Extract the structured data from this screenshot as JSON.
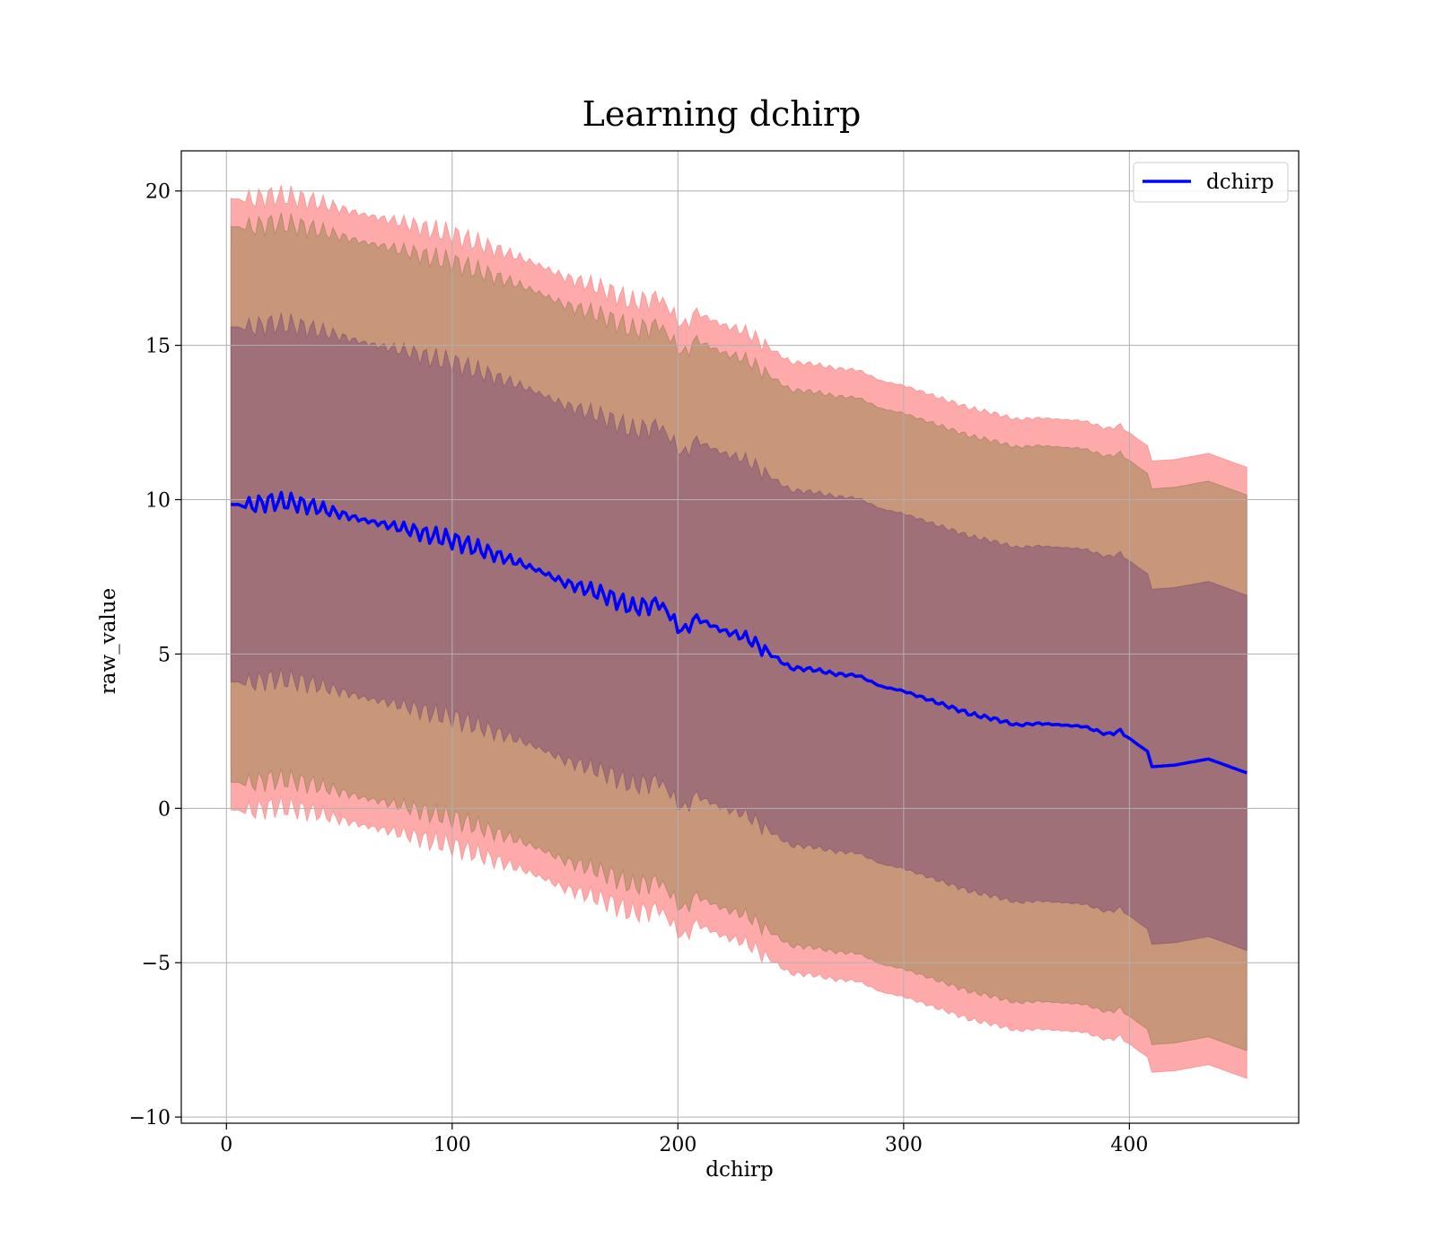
{
  "chart_data": {
    "type": "area",
    "title": "Learning dchirp",
    "xlabel": "dchirp",
    "ylabel": "raw_value",
    "xlim": [
      -20,
      475
    ],
    "ylim": [
      -10.2,
      21.3
    ],
    "xticks": [
      0,
      100,
      200,
      300,
      400
    ],
    "yticks": [
      -10,
      -5,
      0,
      5,
      10,
      15,
      20
    ],
    "xtick_labels": [
      "0",
      "100",
      "200",
      "300",
      "400"
    ],
    "ytick_labels": [
      "−10",
      "−5",
      "0",
      "5",
      "10",
      "15",
      "20"
    ],
    "grid": true,
    "legend": {
      "placement": "top-right",
      "entries": [
        "dchirp"
      ]
    },
    "colors": {
      "line": "#0000ff",
      "band_outer": "#ffaaaa",
      "band_middle": "#c8977a",
      "band_inner": "#a07078"
    },
    "x": [
      2,
      10,
      20,
      30,
      40,
      50,
      60,
      70,
      80,
      90,
      100,
      110,
      120,
      130,
      140,
      150,
      160,
      170,
      180,
      190,
      195,
      200,
      205,
      210,
      220,
      230,
      240,
      250,
      260,
      270,
      280,
      290,
      300,
      310,
      320,
      330,
      340,
      350,
      360,
      370,
      380,
      390,
      396,
      404,
      408,
      410,
      420,
      435,
      452
    ],
    "series": [
      {
        "name": "dchirp",
        "values": [
          9.85,
          9.8,
          9.95,
          9.9,
          9.75,
          9.55,
          9.35,
          9.2,
          9.05,
          8.85,
          8.7,
          8.45,
          8.2,
          7.95,
          7.65,
          7.3,
          7.1,
          6.85,
          6.5,
          6.6,
          6.55,
          5.7,
          6.0,
          6.1,
          5.75,
          5.55,
          5.05,
          4.55,
          4.5,
          4.35,
          4.3,
          3.95,
          3.8,
          3.55,
          3.3,
          3.05,
          2.9,
          2.7,
          2.75,
          2.7,
          2.65,
          2.4,
          2.5,
          2.05,
          1.85,
          1.35,
          1.4,
          1.6,
          1.15
        ]
      }
    ],
    "bands": [
      {
        "label": "outer",
        "offset": 9.9
      },
      {
        "label": "middle",
        "offset": 9.0
      },
      {
        "label": "inner",
        "offset": 5.75
      }
    ]
  }
}
